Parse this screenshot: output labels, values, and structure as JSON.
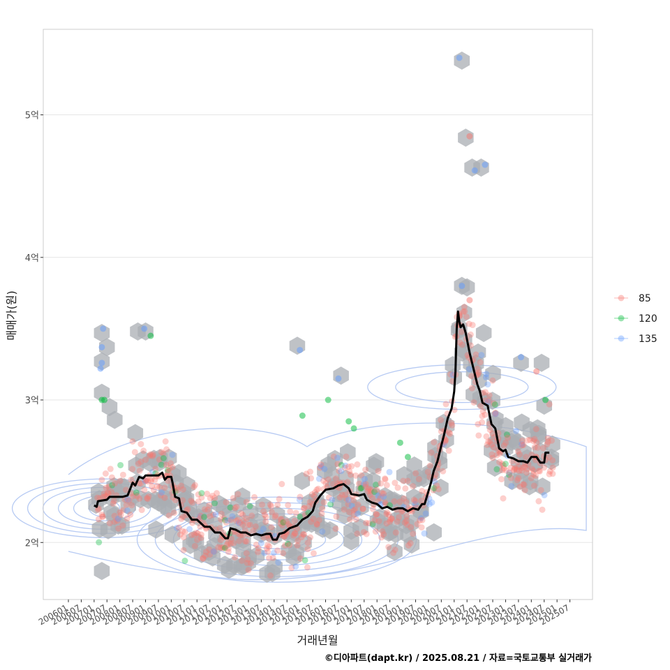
{
  "chart_data": {
    "type": "scatter",
    "xlabel": "거래년월",
    "ylabel": "매매가(원)",
    "caption": "©디아파트(dapt.kr) / 2025.08.21 / 자료=국토교통부 실거래가",
    "x_range": [
      2006.0,
      2026.0
    ],
    "ylim": [
      1.6,
      5.6
    ],
    "y_ticks": [
      {
        "value": 2,
        "label": "2억"
      },
      {
        "value": 3,
        "label": "3억"
      },
      {
        "value": 4,
        "label": "4억"
      },
      {
        "value": 5,
        "label": "5억"
      }
    ],
    "x_ticks": [
      {
        "value": 2006.0,
        "label": "200601"
      },
      {
        "value": 2006.5,
        "label": "200607"
      },
      {
        "value": 2007.0,
        "label": "200701"
      },
      {
        "value": 2007.5,
        "label": "200707"
      },
      {
        "value": 2008.0,
        "label": "200801"
      },
      {
        "value": 2008.5,
        "label": "200807"
      },
      {
        "value": 2009.0,
        "label": "200901"
      },
      {
        "value": 2009.5,
        "label": "200907"
      },
      {
        "value": 2010.0,
        "label": "201001"
      },
      {
        "value": 2010.5,
        "label": "201007"
      },
      {
        "value": 2011.0,
        "label": "201101"
      },
      {
        "value": 2011.5,
        "label": "201107"
      },
      {
        "value": 2012.0,
        "label": "201201"
      },
      {
        "value": 2012.5,
        "label": "201207"
      },
      {
        "value": 2013.0,
        "label": "201301"
      },
      {
        "value": 2013.5,
        "label": "201307"
      },
      {
        "value": 2014.0,
        "label": "201401"
      },
      {
        "value": 2014.5,
        "label": "201407"
      },
      {
        "value": 2015.0,
        "label": "201501"
      },
      {
        "value": 2015.5,
        "label": "201507"
      },
      {
        "value": 2016.0,
        "label": "201601"
      },
      {
        "value": 2016.5,
        "label": "201607"
      },
      {
        "value": 2017.0,
        "label": "201701"
      },
      {
        "value": 2017.5,
        "label": "201707"
      },
      {
        "value": 2018.0,
        "label": "201801"
      },
      {
        "value": 2018.5,
        "label": "201807"
      },
      {
        "value": 2019.0,
        "label": "201901"
      },
      {
        "value": 2019.5,
        "label": "201907"
      },
      {
        "value": 2020.0,
        "label": "202001"
      },
      {
        "value": 2020.5,
        "label": "202007"
      },
      {
        "value": 2021.0,
        "label": "202101"
      },
      {
        "value": 2021.5,
        "label": "202107"
      },
      {
        "value": 2022.0,
        "label": "202201"
      },
      {
        "value": 2022.5,
        "label": "202207"
      },
      {
        "value": 2023.0,
        "label": "202301"
      },
      {
        "value": 2023.5,
        "label": "202307"
      },
      {
        "value": 2024.0,
        "label": "202401"
      },
      {
        "value": 2024.5,
        "label": "202407"
      },
      {
        "value": 2025.0,
        "label": "202501"
      },
      {
        "value": 2025.5,
        "label": "202507"
      }
    ],
    "legend": [
      {
        "label": "85",
        "color": "#F8766D"
      },
      {
        "label": "120",
        "color": "#00BA38"
      },
      {
        "label": "135",
        "color": "#619CFF"
      }
    ],
    "legend_position": "right",
    "trend_line": {
      "name": "moving-average",
      "color": "#000000",
      "points": [
        [
          2007.0,
          2.26
        ],
        [
          2007.1,
          2.25
        ],
        [
          2007.15,
          2.29
        ],
        [
          2007.5,
          2.3
        ],
        [
          2007.6,
          2.32
        ],
        [
          2008.1,
          2.32
        ],
        [
          2008.3,
          2.33
        ],
        [
          2008.5,
          2.42
        ],
        [
          2008.6,
          2.4
        ],
        [
          2008.75,
          2.46
        ],
        [
          2008.9,
          2.45
        ],
        [
          2009.0,
          2.47
        ],
        [
          2009.5,
          2.47
        ],
        [
          2009.65,
          2.49
        ],
        [
          2009.75,
          2.44
        ],
        [
          2009.85,
          2.46
        ],
        [
          2010.0,
          2.46
        ],
        [
          2010.05,
          2.42
        ],
        [
          2010.15,
          2.32
        ],
        [
          2010.3,
          2.31
        ],
        [
          2010.4,
          2.22
        ],
        [
          2010.6,
          2.21
        ],
        [
          2010.8,
          2.16
        ],
        [
          2011.0,
          2.16
        ],
        [
          2011.3,
          2.11
        ],
        [
          2011.5,
          2.11
        ],
        [
          2011.7,
          2.07
        ],
        [
          2011.9,
          2.07
        ],
        [
          2012.1,
          2.03
        ],
        [
          2012.2,
          2.03
        ],
        [
          2012.3,
          2.1
        ],
        [
          2012.5,
          2.09
        ],
        [
          2012.7,
          2.07
        ],
        [
          2012.9,
          2.07
        ],
        [
          2013.1,
          2.05
        ],
        [
          2013.3,
          2.06
        ],
        [
          2013.5,
          2.05
        ],
        [
          2013.7,
          2.06
        ],
        [
          2013.85,
          2.06
        ],
        [
          2013.95,
          2.02
        ],
        [
          2014.1,
          2.02
        ],
        [
          2014.2,
          2.06
        ],
        [
          2014.4,
          2.07
        ],
        [
          2014.6,
          2.1
        ],
        [
          2014.9,
          2.12
        ],
        [
          2015.1,
          2.16
        ],
        [
          2015.3,
          2.18
        ],
        [
          2015.5,
          2.22
        ],
        [
          2015.6,
          2.28
        ],
        [
          2015.8,
          2.33
        ],
        [
          2016.0,
          2.37
        ],
        [
          2016.3,
          2.38
        ],
        [
          2016.5,
          2.4
        ],
        [
          2016.7,
          2.41
        ],
        [
          2016.9,
          2.38
        ],
        [
          2017.0,
          2.34
        ],
        [
          2017.3,
          2.33
        ],
        [
          2017.5,
          2.34
        ],
        [
          2017.6,
          2.3
        ],
        [
          2017.8,
          2.28
        ],
        [
          2018.0,
          2.27
        ],
        [
          2018.2,
          2.24
        ],
        [
          2018.4,
          2.25
        ],
        [
          2018.6,
          2.23
        ],
        [
          2018.8,
          2.24
        ],
        [
          2019.0,
          2.24
        ],
        [
          2019.2,
          2.22
        ],
        [
          2019.4,
          2.24
        ],
        [
          2019.6,
          2.23
        ],
        [
          2019.75,
          2.27
        ],
        [
          2019.85,
          2.27
        ],
        [
          2020.0,
          2.36
        ],
        [
          2020.1,
          2.42
        ],
        [
          2020.2,
          2.5
        ],
        [
          2020.35,
          2.57
        ],
        [
          2020.5,
          2.68
        ],
        [
          2020.6,
          2.75
        ],
        [
          2020.75,
          2.87
        ],
        [
          2020.9,
          2.94
        ],
        [
          2021.0,
          3.06
        ],
        [
          2021.05,
          3.2
        ],
        [
          2021.1,
          3.5
        ],
        [
          2021.15,
          3.62
        ],
        [
          2021.2,
          3.55
        ],
        [
          2021.25,
          3.51
        ],
        [
          2021.35,
          3.53
        ],
        [
          2021.45,
          3.47
        ],
        [
          2021.6,
          3.33
        ],
        [
          2021.75,
          3.22
        ],
        [
          2021.9,
          3.11
        ],
        [
          2022.0,
          3.06
        ],
        [
          2022.1,
          2.98
        ],
        [
          2022.3,
          2.96
        ],
        [
          2022.45,
          2.83
        ],
        [
          2022.6,
          2.8
        ],
        [
          2022.75,
          2.66
        ],
        [
          2022.9,
          2.64
        ],
        [
          2023.0,
          2.65
        ],
        [
          2023.1,
          2.6
        ],
        [
          2023.3,
          2.59
        ],
        [
          2023.5,
          2.57
        ],
        [
          2023.7,
          2.57
        ],
        [
          2023.85,
          2.56
        ],
        [
          2024.0,
          2.6
        ],
        [
          2024.2,
          2.6
        ],
        [
          2024.35,
          2.56
        ],
        [
          2024.5,
          2.56
        ],
        [
          2024.55,
          2.63
        ],
        [
          2024.7,
          2.63
        ]
      ]
    },
    "contour_centers": [
      {
        "x": 2007.4,
        "y": 2.24,
        "name": "contour-peak-2007"
      },
      {
        "x": 2014.1,
        "y": 2.02,
        "name": "contour-peak-2014"
      },
      {
        "x": 2021.3,
        "y": 3.09,
        "name": "contour-peak-2021"
      }
    ]
  }
}
